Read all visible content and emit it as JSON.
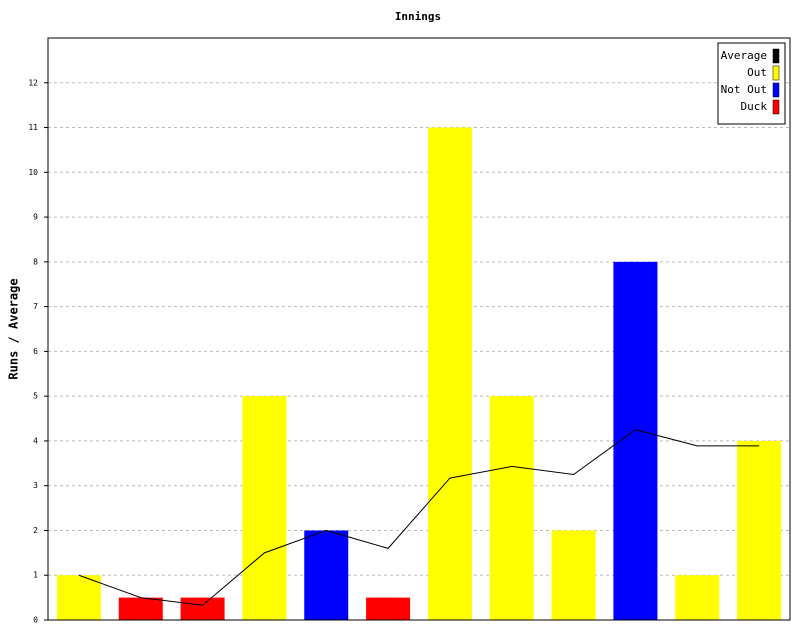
{
  "chart_data": {
    "type": "bar",
    "title": "Innings",
    "y_label": "Runs / Average",
    "categories": [
      null,
      null,
      null,
      null,
      null,
      null,
      null,
      null,
      null,
      null,
      null,
      null
    ],
    "series": [
      {
        "name": "Average",
        "color": "#000000",
        "kind": "line",
        "values": [
          1,
          0.5,
          0.33,
          1.5,
          2,
          1.6,
          3.17,
          3.43,
          3.25,
          4.25,
          3.89,
          3.89
        ]
      },
      {
        "name": "Out",
        "color": "#ffff00",
        "kind": "bar",
        "values": [
          1,
          null,
          null,
          5,
          null,
          null,
          11,
          5,
          2,
          null,
          1,
          4
        ]
      },
      {
        "name": "Not Out",
        "color": "#0000ff",
        "kind": "bar",
        "values": [
          null,
          null,
          null,
          null,
          2,
          null,
          null,
          null,
          null,
          8,
          null,
          null
        ]
      },
      {
        "name": "Duck",
        "color": "#ff0000",
        "kind": "bar",
        "values": [
          null,
          0.5,
          0.5,
          null,
          null,
          0.5,
          null,
          null,
          null,
          null,
          null,
          null
        ]
      }
    ],
    "ylim": [
      0,
      13
    ],
    "yticks": [
      0,
      1,
      2,
      3,
      4,
      5,
      6,
      7,
      8,
      9,
      10,
      11,
      12
    ],
    "grid": true,
    "legend": "top-right"
  }
}
